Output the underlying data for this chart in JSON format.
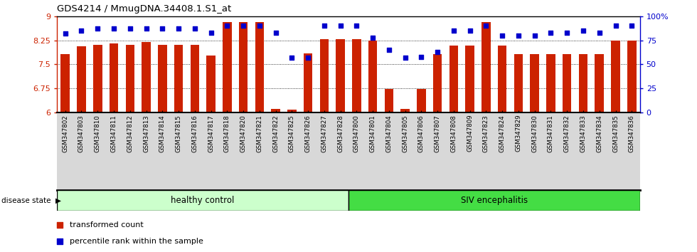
{
  "title": "GDS4214 / MmugDNA.34408.1.S1_at",
  "samples": [
    "GSM347802",
    "GSM347803",
    "GSM347810",
    "GSM347811",
    "GSM347812",
    "GSM347813",
    "GSM347814",
    "GSM347815",
    "GSM347816",
    "GSM347817",
    "GSM347818",
    "GSM347820",
    "GSM347821",
    "GSM347822",
    "GSM347825",
    "GSM347826",
    "GSM347827",
    "GSM347828",
    "GSM347800",
    "GSM347801",
    "GSM347804",
    "GSM347805",
    "GSM347806",
    "GSM347807",
    "GSM347808",
    "GSM347809",
    "GSM347823",
    "GSM347824",
    "GSM347829",
    "GSM347830",
    "GSM347831",
    "GSM347832",
    "GSM347833",
    "GSM347834",
    "GSM347835",
    "GSM347836"
  ],
  "bar_values": [
    7.82,
    8.06,
    8.1,
    8.15,
    8.1,
    8.19,
    8.1,
    8.1,
    8.1,
    7.78,
    8.83,
    8.83,
    8.83,
    6.1,
    6.08,
    7.83,
    8.28,
    8.28,
    8.28,
    8.25,
    6.72,
    6.1,
    6.73,
    7.82,
    8.09,
    8.09,
    8.83,
    8.09,
    7.82,
    7.82,
    7.82,
    7.82,
    7.82,
    7.82,
    8.25,
    8.25
  ],
  "percentile_values": [
    82,
    85,
    87,
    87,
    87,
    87,
    87,
    87,
    87,
    83,
    90,
    90,
    90,
    83,
    57,
    57,
    90,
    90,
    90,
    78,
    65,
    57,
    58,
    63,
    85,
    85,
    90,
    80,
    80,
    80,
    83,
    83,
    85,
    83,
    90,
    90
  ],
  "healthy_control_count": 18,
  "bar_color": "#CC2200",
  "percentile_color": "#0000CC",
  "ylim_left": [
    6.0,
    9.0
  ],
  "ylim_right": [
    0,
    100
  ],
  "yticks_left": [
    6.0,
    6.75,
    7.5,
    8.25,
    9.0
  ],
  "ytick_labels_left": [
    "6",
    "6.75",
    "7.5",
    "8.25",
    "9"
  ],
  "yticks_right": [
    0,
    25,
    50,
    75,
    100
  ],
  "ytick_labels_right": [
    "0",
    "25",
    "50",
    "75",
    "100%"
  ],
  "healthy_label": "healthy control",
  "disease_label": "SIV encephalitis",
  "disease_state_label": "disease state",
  "legend_bar_label": "transformed count",
  "legend_pct_label": "percentile rank within the sample",
  "healthy_bg": "#CCFFCC",
  "disease_bg": "#44DD44",
  "axis_bg": "#FFFFFF",
  "xticklabel_bg": "#D8D8D8"
}
